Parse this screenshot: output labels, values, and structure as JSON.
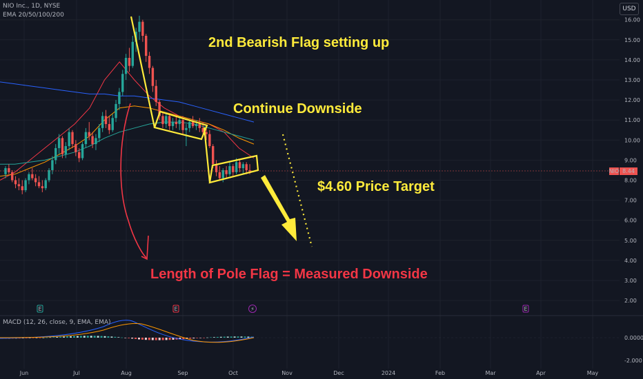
{
  "header": {
    "symbol_line": "NIO Inc., 1D, NYSE",
    "indicator_line": "EMA 20/50/100/200",
    "currency_button": "USD"
  },
  "macd": {
    "label": "MACD (12, 26, close, 9, EMA, EMA)"
  },
  "colors": {
    "background": "#131722",
    "up": "#26a69a",
    "down": "#ef5350",
    "annotation_yellow": "#ffeb3b",
    "annotation_red": "#f23645"
  },
  "chart_data": {
    "type": "candlestick",
    "symbol": "NIO",
    "current_price_tag": "8.44",
    "price_axis_ticks": [
      "16.00",
      "15.00",
      "14.00",
      "13.00",
      "12.00",
      "11.00",
      "10.00",
      "9.00",
      "8.00",
      "7.00",
      "6.00",
      "5.00",
      "4.00",
      "3.00",
      "2.00"
    ],
    "price_range": [
      1.5,
      16.3
    ],
    "time_axis_ticks": [
      "Jun",
      "Jul",
      "Aug",
      "Sep",
      "Oct",
      "Nov",
      "Dec",
      "2024",
      "Feb",
      "Mar",
      "Apr",
      "May"
    ],
    "macd_axis_ticks": [
      "0.0000",
      "-2.000"
    ],
    "annotations": [
      "2nd Bearish Flag setting up",
      "Continue Downside",
      "$4.60 Price Target",
      "Length of Pole Flag = Measured Downside"
    ],
    "candles": [
      [
        8.3,
        8.7,
        8.1,
        8.6
      ],
      [
        8.6,
        8.8,
        8.3,
        8.4
      ],
      [
        8.4,
        8.5,
        7.9,
        8.0
      ],
      [
        8.0,
        8.2,
        7.6,
        7.8
      ],
      [
        7.8,
        8.1,
        7.5,
        7.7
      ],
      [
        7.7,
        8.0,
        7.3,
        7.5
      ],
      [
        7.5,
        8.1,
        7.4,
        8.0
      ],
      [
        8.0,
        8.4,
        7.8,
        8.3
      ],
      [
        8.3,
        8.6,
        8.0,
        8.1
      ],
      [
        8.1,
        8.3,
        7.7,
        7.9
      ],
      [
        7.9,
        8.2,
        7.6,
        7.7
      ],
      [
        7.7,
        8.0,
        7.4,
        7.6
      ],
      [
        7.6,
        8.1,
        7.5,
        8.0
      ],
      [
        8.0,
        8.6,
        7.9,
        8.5
      ],
      [
        8.5,
        9.2,
        8.3,
        9.0
      ],
      [
        9.0,
        9.8,
        8.8,
        9.6
      ],
      [
        9.6,
        10.3,
        9.3,
        10.1
      ],
      [
        10.1,
        10.2,
        9.1,
        9.3
      ],
      [
        9.3,
        9.9,
        9.1,
        9.7
      ],
      [
        9.7,
        10.6,
        9.5,
        10.4
      ],
      [
        10.4,
        10.5,
        9.6,
        9.8
      ],
      [
        9.8,
        10.0,
        9.2,
        9.4
      ],
      [
        9.4,
        9.6,
        8.9,
        9.1
      ],
      [
        9.1,
        9.9,
        9.0,
        9.8
      ],
      [
        9.8,
        10.6,
        9.6,
        10.4
      ],
      [
        10.4,
        10.9,
        10.0,
        10.2
      ],
      [
        10.2,
        10.4,
        9.6,
        9.8
      ],
      [
        9.8,
        10.3,
        9.5,
        10.1
      ],
      [
        10.1,
        10.8,
        9.9,
        10.6
      ],
      [
        10.6,
        11.4,
        10.4,
        11.2
      ],
      [
        11.2,
        11.5,
        10.6,
        10.8
      ],
      [
        10.8,
        11.2,
        10.3,
        10.5
      ],
      [
        10.5,
        11.3,
        10.4,
        11.1
      ],
      [
        11.1,
        12.0,
        10.9,
        11.8
      ],
      [
        11.8,
        12.6,
        11.5,
        12.4
      ],
      [
        12.4,
        13.5,
        12.2,
        13.3
      ],
      [
        13.3,
        14.3,
        13.0,
        14.1
      ],
      [
        14.1,
        14.6,
        13.4,
        13.7
      ],
      [
        13.7,
        15.2,
        13.6,
        14.9
      ],
      [
        14.9,
        15.6,
        14.4,
        15.4
      ],
      [
        15.4,
        16.2,
        15.0,
        15.9
      ],
      [
        15.9,
        16.0,
        14.9,
        15.2
      ],
      [
        15.2,
        15.3,
        13.9,
        14.2
      ],
      [
        14.2,
        14.4,
        13.3,
        13.6
      ],
      [
        13.6,
        13.7,
        12.4,
        12.7
      ],
      [
        12.7,
        13.0,
        11.7,
        11.9
      ],
      [
        11.9,
        12.0,
        11.0,
        11.2
      ],
      [
        11.2,
        11.4,
        10.6,
        10.8
      ],
      [
        10.8,
        11.4,
        10.6,
        11.2
      ],
      [
        11.2,
        11.3,
        10.5,
        10.7
      ],
      [
        10.7,
        11.1,
        10.5,
        10.9
      ],
      [
        10.9,
        11.3,
        10.6,
        10.8
      ],
      [
        10.8,
        11.2,
        10.5,
        11.0
      ],
      [
        11.0,
        11.2,
        10.3,
        10.5
      ],
      [
        10.5,
        10.8,
        9.7,
        10.6
      ],
      [
        10.6,
        11.0,
        10.4,
        10.9
      ],
      [
        10.9,
        11.2,
        10.6,
        10.7
      ],
      [
        10.7,
        11.0,
        10.5,
        10.8
      ],
      [
        10.8,
        11.1,
        10.4,
        10.6
      ],
      [
        10.6,
        10.9,
        10.2,
        10.4
      ],
      [
        10.4,
        10.7,
        10.0,
        10.3
      ],
      [
        10.3,
        10.5,
        9.6,
        9.7
      ],
      [
        9.7,
        9.8,
        8.6,
        8.8
      ],
      [
        8.8,
        9.0,
        8.2,
        8.4
      ],
      [
        8.4,
        8.7,
        8.0,
        8.1
      ],
      [
        8.1,
        8.6,
        7.9,
        8.5
      ],
      [
        8.5,
        8.7,
        8.1,
        8.3
      ],
      [
        8.3,
        8.9,
        8.2,
        8.7
      ],
      [
        8.7,
        8.8,
        8.2,
        8.4
      ],
      [
        8.4,
        9.1,
        8.3,
        8.9
      ],
      [
        8.9,
        9.0,
        8.4,
        8.6
      ],
      [
        8.6,
        8.9,
        8.3,
        8.8
      ],
      [
        8.8,
        8.9,
        8.3,
        8.5
      ],
      [
        8.5,
        8.8,
        8.3,
        8.44
      ]
    ],
    "ema_series": [
      {
        "color": "#f23645",
        "values": [
          8.0,
          8.4,
          9.0,
          9.6,
          10.2,
          10.8,
          11.6,
          13.0,
          13.9,
          13.0,
          12.2,
          11.6,
          11.2,
          11.0,
          10.8,
          10.4,
          9.6,
          9.1
        ]
      },
      {
        "color": "#ff9800",
        "values": [
          8.2,
          8.3,
          8.6,
          8.9,
          9.3,
          9.7,
          10.2,
          11.0,
          11.6,
          11.7,
          11.6,
          11.4,
          11.2,
          11.0,
          10.8,
          10.5,
          10.1,
          9.8
        ]
      },
      {
        "color": "#26a69a",
        "values": [
          8.8,
          8.8,
          8.9,
          9.0,
          9.2,
          9.4,
          9.7,
          10.1,
          10.4,
          10.6,
          10.8,
          10.9,
          10.9,
          10.8,
          10.6,
          10.4,
          10.2,
          10.0
        ]
      },
      {
        "color": "#2962ff",
        "values": [
          12.9,
          12.8,
          12.7,
          12.6,
          12.5,
          12.4,
          12.3,
          12.3,
          12.2,
          12.2,
          12.1,
          12.0,
          11.9,
          11.7,
          11.5,
          11.3,
          11.1,
          10.9
        ]
      }
    ]
  }
}
